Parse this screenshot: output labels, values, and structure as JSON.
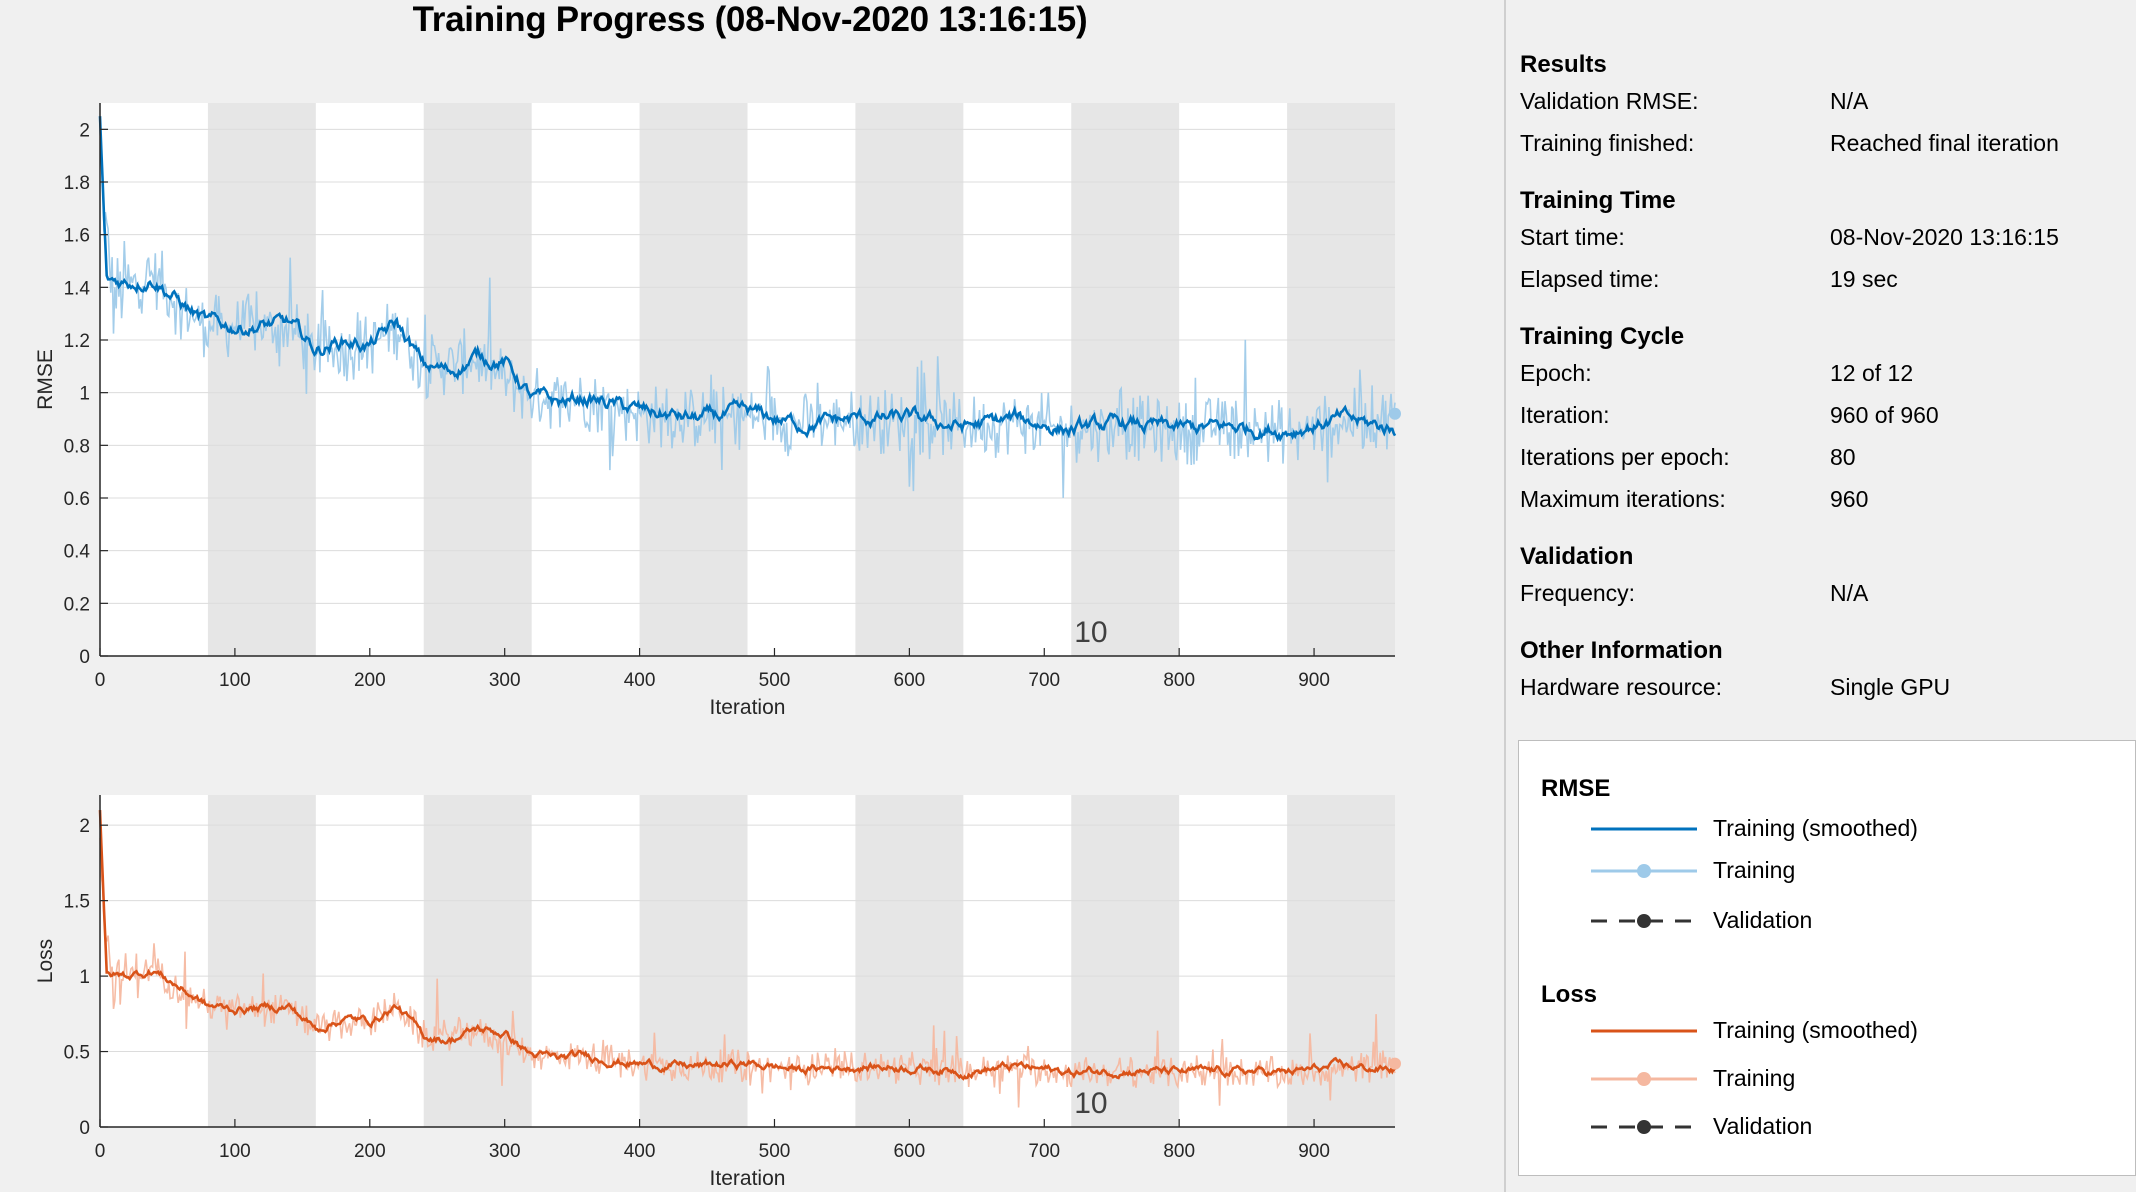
{
  "title": "Training Progress (08-Nov-2020 13:16:15)",
  "info": {
    "sections": [
      {
        "title": "Results",
        "rows": [
          {
            "label": "Validation RMSE:",
            "value": "N/A"
          },
          {
            "label": "Training finished:",
            "value": "Reached final iteration"
          }
        ]
      },
      {
        "title": "Training Time",
        "rows": [
          {
            "label": "Start time:",
            "value": "08-Nov-2020 13:16:15"
          },
          {
            "label": "Elapsed time:",
            "value": "19 sec"
          }
        ]
      },
      {
        "title": "Training Cycle",
        "rows": [
          {
            "label": "Epoch:",
            "value": "12 of 12"
          },
          {
            "label": "Iteration:",
            "value": "960 of 960"
          },
          {
            "label": "Iterations per epoch:",
            "value": "80"
          },
          {
            "label": "Maximum iterations:",
            "value": "960"
          }
        ]
      },
      {
        "title": "Validation",
        "rows": [
          {
            "label": "Frequency:",
            "value": "N/A"
          }
        ]
      },
      {
        "title": "Other Information",
        "rows": [
          {
            "label": "Hardware resource:",
            "value": "Single GPU"
          }
        ]
      }
    ]
  },
  "legend": {
    "rmse_title": "RMSE",
    "loss_title": "Loss",
    "smoothed_label": "Training (smoothed)",
    "training_label": "Training",
    "validation_label": "Validation"
  },
  "colors": {
    "rmse_smoothed": "#0072bd",
    "rmse_raw": "#9ecae9",
    "loss_smoothed": "#d95319",
    "loss_raw": "#f5b8a0",
    "validation": "#333333",
    "epoch_shade": "#e6e6e6"
  },
  "chart_data": [
    {
      "type": "line",
      "ylabel": "RMSE",
      "xlabel": "Iteration",
      "xlim": [
        0,
        960
      ],
      "ylim": [
        0,
        2.1
      ],
      "xticks": [
        0,
        100,
        200,
        300,
        400,
        500,
        600,
        700,
        800,
        900
      ],
      "yticks": [
        0,
        0.2,
        0.4,
        0.6,
        0.8,
        1,
        1.2,
        1.4,
        1.6,
        1.8,
        2
      ],
      "ytick_labels": [
        "0",
        "0.2",
        "0.4",
        "0.6",
        "0.8",
        "1",
        "1.2",
        "1.4",
        "1.6",
        "1.8",
        "2"
      ],
      "epoch_length": 80,
      "epoch_label": "10",
      "epoch_label_at": 720,
      "series": [
        {
          "kind": "smoothed",
          "x": [
            0,
            5,
            20,
            40,
            60,
            80,
            100,
            140,
            160,
            180,
            200,
            220,
            240,
            260,
            280,
            300,
            320,
            340,
            360,
            400,
            440,
            480,
            520,
            560,
            600,
            640,
            680,
            720,
            760,
            800,
            840,
            880,
            920,
            960
          ],
          "values": [
            2.05,
            1.42,
            1.42,
            1.44,
            1.34,
            1.26,
            1.25,
            1.26,
            1.16,
            1.2,
            1.18,
            1.26,
            1.1,
            1.08,
            1.14,
            1.12,
            0.98,
            0.96,
            0.98,
            0.93,
            0.9,
            0.92,
            0.88,
            0.9,
            0.9,
            0.87,
            0.9,
            0.86,
            0.88,
            0.86,
            0.87,
            0.86,
            0.9,
            0.86
          ]
        },
        {
          "kind": "raw",
          "x": [
            0,
            3,
            10,
            20,
            40,
            60,
            80,
            100,
            140,
            160,
            200,
            220,
            240,
            280,
            320,
            360,
            400,
            440,
            480,
            520,
            560,
            600,
            640,
            680,
            720,
            760,
            800,
            840,
            880,
            920,
            960
          ],
          "values": [
            2.0,
            1.7,
            1.35,
            1.4,
            1.45,
            1.32,
            1.25,
            1.25,
            1.25,
            1.15,
            1.18,
            1.25,
            1.1,
            1.12,
            0.98,
            0.98,
            0.92,
            0.9,
            0.91,
            0.88,
            0.9,
            0.89,
            0.87,
            0.89,
            0.86,
            0.87,
            0.85,
            0.87,
            0.85,
            0.88,
            0.92
          ]
        }
      ]
    },
    {
      "type": "line",
      "ylabel": "Loss",
      "xlabel": "Iteration",
      "xlim": [
        0,
        960
      ],
      "ylim": [
        0,
        2.2
      ],
      "xticks": [
        0,
        100,
        200,
        300,
        400,
        500,
        600,
        700,
        800,
        900
      ],
      "yticks": [
        0,
        0.5,
        1,
        1.5,
        2
      ],
      "ytick_labels": [
        "0",
        "0.5",
        "1",
        "1.5",
        "2"
      ],
      "epoch_length": 80,
      "epoch_label": "10",
      "epoch_label_at": 720,
      "series": [
        {
          "kind": "smoothed",
          "x": [
            0,
            5,
            20,
            40,
            60,
            80,
            100,
            140,
            160,
            180,
            200,
            220,
            240,
            260,
            280,
            300,
            320,
            340,
            360,
            400,
            440,
            480,
            520,
            560,
            600,
            640,
            680,
            720,
            760,
            800,
            840,
            880,
            920,
            960
          ],
          "values": [
            2.1,
            1.0,
            1.0,
            1.04,
            0.92,
            0.8,
            0.78,
            0.8,
            0.65,
            0.72,
            0.7,
            0.8,
            0.6,
            0.58,
            0.65,
            0.62,
            0.48,
            0.45,
            0.47,
            0.42,
            0.4,
            0.42,
            0.38,
            0.4,
            0.4,
            0.37,
            0.4,
            0.36,
            0.38,
            0.36,
            0.37,
            0.36,
            0.4,
            0.38
          ]
        },
        {
          "kind": "raw",
          "x": [
            0,
            3,
            10,
            20,
            40,
            60,
            80,
            100,
            140,
            160,
            200,
            220,
            240,
            280,
            320,
            360,
            400,
            440,
            480,
            520,
            560,
            600,
            640,
            680,
            720,
            760,
            800,
            840,
            880,
            920,
            960
          ],
          "values": [
            2.0,
            1.4,
            0.95,
            1.0,
            1.05,
            0.9,
            0.8,
            0.78,
            0.78,
            0.65,
            0.7,
            0.8,
            0.6,
            0.63,
            0.48,
            0.47,
            0.42,
            0.4,
            0.41,
            0.38,
            0.4,
            0.39,
            0.37,
            0.39,
            0.36,
            0.37,
            0.35,
            0.37,
            0.35,
            0.38,
            0.42
          ]
        }
      ]
    }
  ]
}
